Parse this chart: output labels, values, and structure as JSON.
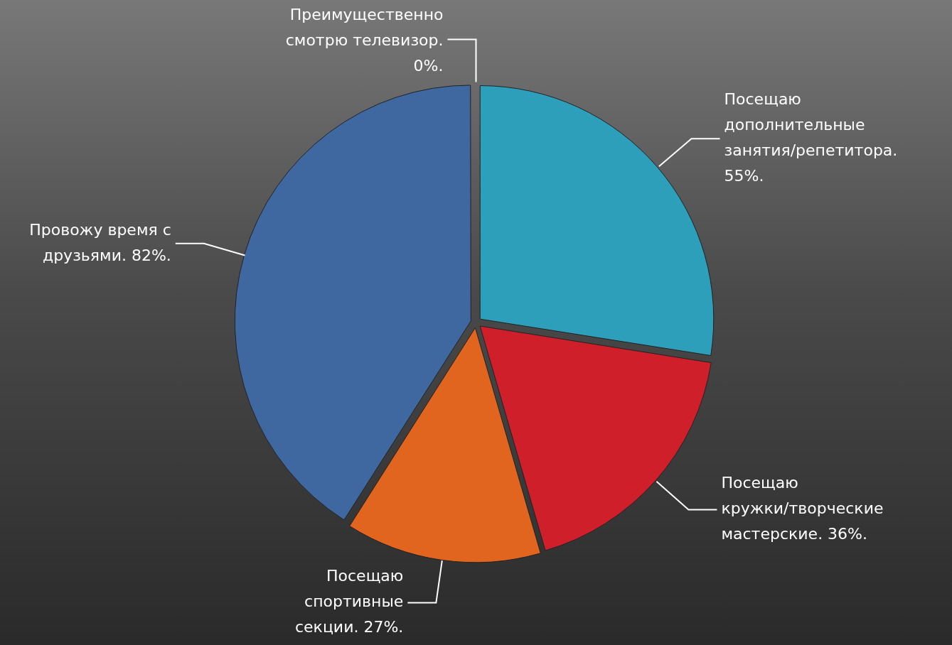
{
  "chart_data": {
    "type": "pie",
    "categories": [
      "Преимущественно смотрю телевизор.",
      "Посещаю дополнительные занятия/репетитора.",
      "Посещаю кружки/творческие мастерские.",
      "Посещаю спортивные секции.",
      "Провожу время с друзьями."
    ],
    "values": [
      0,
      55,
      36,
      27,
      82
    ],
    "value_labels": [
      "0%.",
      "55%.",
      "36%.",
      "27%.",
      "82%."
    ],
    "colors": [
      "#8a8a8a",
      "#2e9fba",
      "#cf1f2a",
      "#e2651f",
      "#4068a0"
    ],
    "legend": false
  }
}
